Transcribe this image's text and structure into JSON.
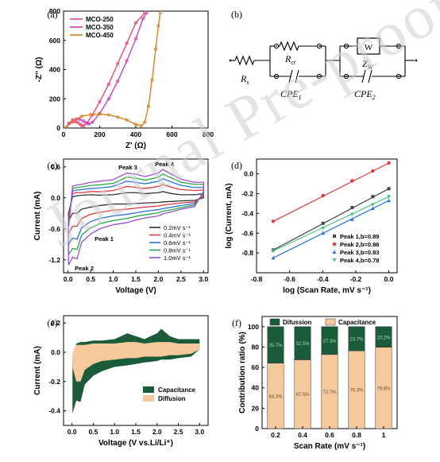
{
  "watermark": "Journal Pre-proofs",
  "colors": {
    "mco250": "#e8476f",
    "mco350": "#d13fb8",
    "mco450": "#d98024",
    "red": "#e0393e",
    "black": "#444444",
    "blue": "#2a73d9",
    "green": "#44c77a",
    "cv02": "#333333",
    "cv04": "#e0393e",
    "cv06": "#2a73d9",
    "cv08": "#27a64a",
    "cv10": "#9a4fd3",
    "capacitance": "#1a5c3a",
    "diffusion": "#f5c99c"
  },
  "panels": {
    "a": {
      "label": "(a)"
    },
    "b": {
      "label": "(b)"
    },
    "c": {
      "label": "(c)"
    },
    "d": {
      "label": "(d)"
    },
    "e": {
      "label": "(e)"
    },
    "f": {
      "label": "(f)"
    }
  },
  "circuit": {
    "rs": "R",
    "rs_sub": "s",
    "rct": "R",
    "rct_sub": "ct",
    "cpe1": "CPE",
    "cpe1_sub": "1",
    "zw": "Z",
    "zw_sub": "W",
    "w_box": "W",
    "cpe2": "CPE",
    "cpe2_sub": "2"
  },
  "chart_data": [
    {
      "panel": "a",
      "type": "scatter",
      "xlabel": "Z' (Ω)",
      "ylabel": "-Z'' (Ω)",
      "xlim": [
        0,
        800
      ],
      "ylim": [
        0,
        800
      ],
      "xticks": [
        0,
        200,
        400,
        600,
        800
      ],
      "yticks": [
        0,
        200,
        400,
        600,
        800
      ],
      "legend_position": "top-left",
      "series": [
        {
          "name": "MCO-250",
          "color_key": "mco250",
          "x": [
            15,
            30,
            45,
            60,
            75,
            90,
            100,
            110,
            130,
            160,
            200,
            250,
            300,
            350,
            400,
            450
          ],
          "y": [
            5,
            28,
            40,
            44,
            40,
            28,
            18,
            15,
            35,
            90,
            180,
            300,
            440,
            580,
            720,
            790
          ]
        },
        {
          "name": "MCO-350",
          "color_key": "mco350",
          "x": [
            15,
            30,
            50,
            70,
            90,
            110,
            125,
            140,
            160,
            200,
            250,
            300,
            350,
            400,
            440,
            460
          ],
          "y": [
            5,
            32,
            55,
            62,
            60,
            48,
            35,
            28,
            40,
            100,
            200,
            320,
            460,
            610,
            750,
            790
          ]
        },
        {
          "name": "MCO-450",
          "color_key": "mco450",
          "x": [
            15,
            50,
            100,
            150,
            200,
            250,
            300,
            350,
            400,
            430,
            450,
            470,
            490,
            510,
            525,
            535
          ],
          "y": [
            5,
            50,
            80,
            92,
            95,
            90,
            75,
            55,
            25,
            15,
            40,
            150,
            330,
            540,
            700,
            790
          ]
        }
      ]
    },
    {
      "panel": "c",
      "type": "line",
      "xlabel": "Voltage (V)",
      "ylabel": "Current (mA)",
      "xlim": [
        -0.1,
        3.1
      ],
      "ylim": [
        -1.45,
        0.75
      ],
      "xticks": [
        0.0,
        0.5,
        1.0,
        1.5,
        2.0,
        2.5,
        3.0
      ],
      "yticks": [
        -1.2,
        -0.6,
        0.0,
        0.6
      ],
      "legend_position": "bottom-right",
      "annotations": [
        "Peak 1",
        "Peak 2",
        "Peak 3",
        "Peak 4"
      ],
      "x": [
        0.01,
        0.1,
        0.2,
        0.3,
        0.5,
        0.7,
        1.0,
        1.3,
        1.5,
        1.7,
        2.0,
        2.1,
        2.3,
        2.5,
        2.8,
        3.0
      ],
      "series": [
        {
          "name": "0.2mV s⁻¹",
          "color_key": "cv02",
          "upper": [
            -0.3,
            0.02,
            0.04,
            0.05,
            0.06,
            0.05,
            0.06,
            0.1,
            0.1,
            0.08,
            0.1,
            0.12,
            0.08,
            0.06,
            0.06,
            0.08
          ],
          "lower": [
            -0.45,
            -0.3,
            -0.3,
            -0.22,
            -0.18,
            -0.15,
            -0.12,
            -0.12,
            -0.11,
            -0.1,
            -0.09,
            -0.08,
            -0.07,
            -0.06,
            -0.05,
            0.0
          ]
        },
        {
          "name": "0.4mV s⁻¹",
          "color_key": "cv04",
          "upper": [
            -0.4,
            0.08,
            0.1,
            0.1,
            0.12,
            0.12,
            0.14,
            0.22,
            0.2,
            0.18,
            0.22,
            0.26,
            0.2,
            0.16,
            0.14,
            0.15
          ],
          "lower": [
            -0.7,
            -0.55,
            -0.55,
            -0.4,
            -0.32,
            -0.28,
            -0.24,
            -0.22,
            -0.2,
            -0.18,
            -0.16,
            -0.14,
            -0.12,
            -0.1,
            -0.08,
            0.04
          ]
        },
        {
          "name": "0.6mV s⁻¹",
          "color_key": "cv06",
          "upper": [
            -0.5,
            0.13,
            0.15,
            0.16,
            0.18,
            0.19,
            0.22,
            0.32,
            0.3,
            0.27,
            0.32,
            0.37,
            0.3,
            0.24,
            0.2,
            0.2
          ],
          "lower": [
            -0.9,
            -0.78,
            -0.8,
            -0.58,
            -0.46,
            -0.4,
            -0.35,
            -0.32,
            -0.29,
            -0.26,
            -0.23,
            -0.21,
            -0.18,
            -0.15,
            -0.11,
            0.08
          ]
        },
        {
          "name": "0.8mV s⁻¹",
          "color_key": "cv08",
          "upper": [
            -0.55,
            0.18,
            0.2,
            0.21,
            0.24,
            0.25,
            0.28,
            0.4,
            0.38,
            0.34,
            0.4,
            0.46,
            0.38,
            0.3,
            0.26,
            0.26
          ],
          "lower": [
            -1.1,
            -0.98,
            -1.0,
            -0.72,
            -0.58,
            -0.5,
            -0.44,
            -0.4,
            -0.36,
            -0.33,
            -0.29,
            -0.26,
            -0.23,
            -0.19,
            -0.14,
            0.1
          ]
        },
        {
          "name": "1.0mV s⁻¹",
          "color_key": "cv10",
          "upper": [
            -0.6,
            0.22,
            0.25,
            0.26,
            0.3,
            0.32,
            0.35,
            0.48,
            0.46,
            0.41,
            0.48,
            0.55,
            0.45,
            0.36,
            0.3,
            0.3
          ],
          "lower": [
            -1.3,
            -1.15,
            -1.18,
            -0.86,
            -0.7,
            -0.6,
            -0.52,
            -0.48,
            -0.43,
            -0.39,
            -0.35,
            -0.31,
            -0.27,
            -0.22,
            -0.17,
            0.12
          ]
        }
      ]
    },
    {
      "panel": "d",
      "type": "scatter",
      "xlabel": "log (Scan Rate, mV s⁻¹)",
      "ylabel": "log (Current, mA)",
      "xlim": [
        -0.8,
        0.05
      ],
      "ylim": [
        -1.0,
        0.15
      ],
      "xticks": [
        -0.8,
        -0.6,
        -0.4,
        -0.2,
        0.0
      ],
      "yticks": [
        -0.8,
        -0.6,
        -0.4,
        -0.2,
        0.0
      ],
      "legend_position": "bottom-right",
      "x": [
        -0.699,
        -0.398,
        -0.222,
        -0.097,
        0.0
      ],
      "series": [
        {
          "name": "Peak 1,b=0.89",
          "color_key": "black",
          "marker": "square",
          "y": [
            -0.77,
            -0.5,
            -0.34,
            -0.23,
            -0.15
          ]
        },
        {
          "name": "Peak 2,b=0.86",
          "color_key": "red",
          "marker": "circle",
          "y": [
            -0.48,
            -0.22,
            -0.07,
            0.03,
            0.11
          ]
        },
        {
          "name": "Peak 3,b=0.83",
          "color_key": "blue",
          "marker": "triangle-up",
          "y": [
            -0.85,
            -0.6,
            -0.46,
            -0.35,
            -0.27
          ]
        },
        {
          "name": "Peak 4,b=0.78",
          "color_key": "green",
          "marker": "triangle-down",
          "y": [
            -0.78,
            -0.55,
            -0.41,
            -0.31,
            -0.23
          ]
        }
      ]
    },
    {
      "panel": "e",
      "type": "area",
      "xlabel": "Voltage (V vs.Li/Li⁺)",
      "ylabel": "Current (mA)",
      "xlim": [
        -0.2,
        3.2
      ],
      "ylim": [
        -0.5,
        0.25
      ],
      "xticks": [
        0.0,
        0.5,
        1.0,
        1.5,
        2.0,
        2.5,
        3.0
      ],
      "yticks": [
        -0.4,
        -0.2,
        0.0,
        0.2
      ],
      "legend_position": "bottom-right",
      "x": [
        0.01,
        0.1,
        0.2,
        0.3,
        0.5,
        0.7,
        1.0,
        1.3,
        1.5,
        1.7,
        2.0,
        2.1,
        2.3,
        2.5,
        2.8,
        3.0
      ],
      "series": [
        {
          "name": "Capacitance",
          "color_key": "capacitance",
          "upper": [
            -0.05,
            0.06,
            0.07,
            0.07,
            0.08,
            0.08,
            0.09,
            0.13,
            0.11,
            0.09,
            0.13,
            0.16,
            0.11,
            0.09,
            0.09,
            0.09
          ],
          "lower": [
            -0.42,
            -0.33,
            -0.34,
            -0.22,
            -0.16,
            -0.13,
            -0.1,
            -0.09,
            -0.08,
            -0.07,
            -0.06,
            -0.05,
            -0.05,
            -0.04,
            -0.03,
            0.02
          ]
        },
        {
          "name": "Diffusion",
          "color_key": "diffusion",
          "upper": [
            0.0,
            0.05,
            0.05,
            0.05,
            0.06,
            0.06,
            0.06,
            0.07,
            0.07,
            0.06,
            0.07,
            0.07,
            0.07,
            0.06,
            0.06,
            0.06
          ],
          "lower": [
            -0.1,
            -0.2,
            -0.2,
            -0.12,
            -0.08,
            -0.06,
            -0.05,
            -0.04,
            -0.04,
            -0.03,
            -0.03,
            -0.03,
            -0.02,
            -0.02,
            -0.01,
            0.02
          ]
        }
      ]
    },
    {
      "panel": "f",
      "type": "bar",
      "xlabel": "Scan Rate (mV s⁻¹)",
      "ylabel": "Contribution ratio (%)",
      "ylim": [
        0,
        110
      ],
      "yticks": [
        0,
        20,
        40,
        60,
        80,
        100
      ],
      "legend_position": "top",
      "categories": [
        "0.2",
        "0.4",
        "0.6",
        "0.8",
        "1"
      ],
      "series": [
        {
          "name": "Capacitance",
          "color_key": "diffusion",
          "values": [
            64.3,
            67.5,
            72.7,
            76.3,
            79.8
          ],
          "labels": [
            "64.3%",
            "67.5%",
            "72.7%",
            "76.3%",
            "79.8%"
          ]
        },
        {
          "name": "Difussion",
          "color_key": "capacitance",
          "values": [
            35.7,
            32.5,
            27.3,
            23.7,
            20.2
          ],
          "labels": [
            "35.7%",
            "32.5%",
            "27.3%",
            "23.7%",
            "20.2%"
          ]
        }
      ]
    }
  ]
}
